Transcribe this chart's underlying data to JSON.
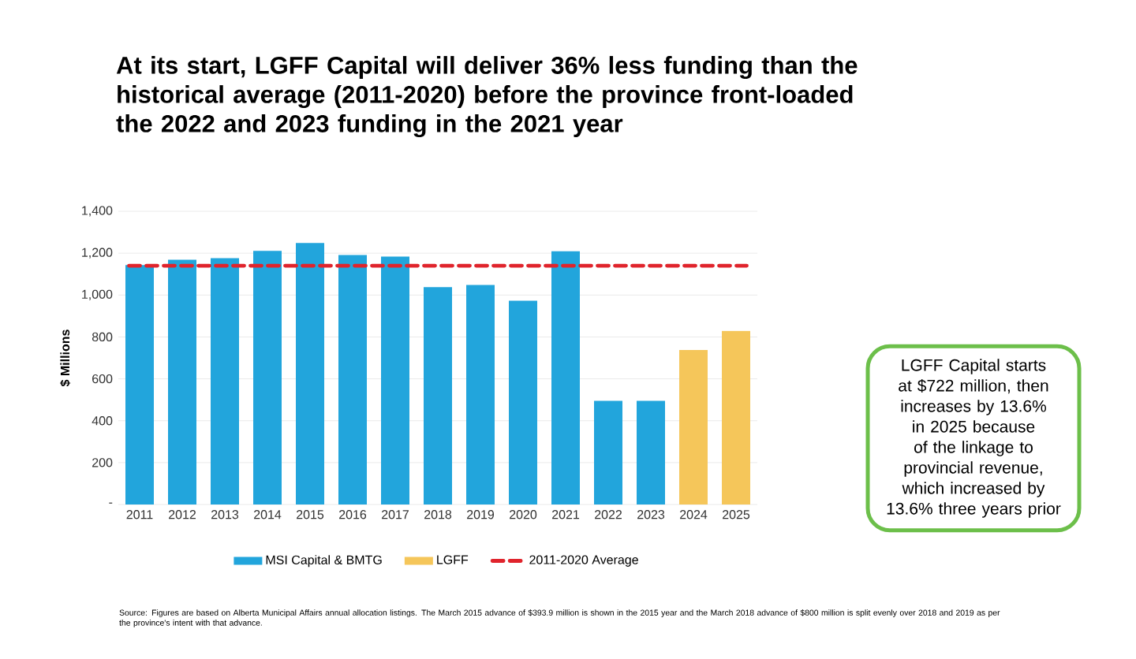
{
  "chart_data": {
    "type": "bar",
    "title": "At its start, LGFF Capital will deliver 36% less funding than the historical average (2011-2020) before the province front-loaded the 2022 and 2023 funding in the 2021 year",
    "ylabel": "$ Millions",
    "categories": [
      "2011",
      "2012",
      "2013",
      "2014",
      "2015",
      "2016",
      "2017",
      "2018",
      "2019",
      "2020",
      "2021",
      "2022",
      "2023",
      "2024",
      "2025"
    ],
    "series": [
      {
        "name": "MSI Capital & BMTG",
        "color": "#22a5dc",
        "values": [
          1143,
          1169,
          1176,
          1211,
          1249,
          1191,
          1184,
          1038,
          1048,
          973,
          1209,
          495,
          495,
          null,
          null
        ]
      },
      {
        "name": "LGFF",
        "color": "#f5c65a",
        "values": [
          null,
          null,
          null,
          null,
          null,
          null,
          null,
          null,
          null,
          null,
          null,
          null,
          null,
          738,
          829
        ]
      }
    ],
    "ylim": [
      0,
      1400
    ],
    "yticks": [
      {
        "value": 0,
        "label": "-"
      },
      200,
      400,
      600,
      800,
      {
        "value": 1000,
        "label": "1,000"
      },
      {
        "value": 1200,
        "label": "1,200"
      },
      {
        "value": 1400,
        "label": "1,400"
      }
    ],
    "ref_lines": [
      {
        "axis": "y",
        "value": 1140,
        "label": "2011-2020 Average",
        "color": "#e0242c",
        "line_style": "dashed"
      }
    ],
    "grid": "y",
    "legend": "bottom",
    "annotations": [
      "LGFF Capital starts at $722 million, then increases by 13.6% in 2025 because of the linkage to provincial revenue, which increased by 13.6% three years prior",
      "Source: Figures are based on Alberta Municipal Affairs annual allocation listings. The March 2015 advance of $393.9 million is shown in the 2015 year and the March 2018 advance of $800 million is split evenly over 2018 and 2019 as per the province's intent with that advance."
    ]
  }
}
